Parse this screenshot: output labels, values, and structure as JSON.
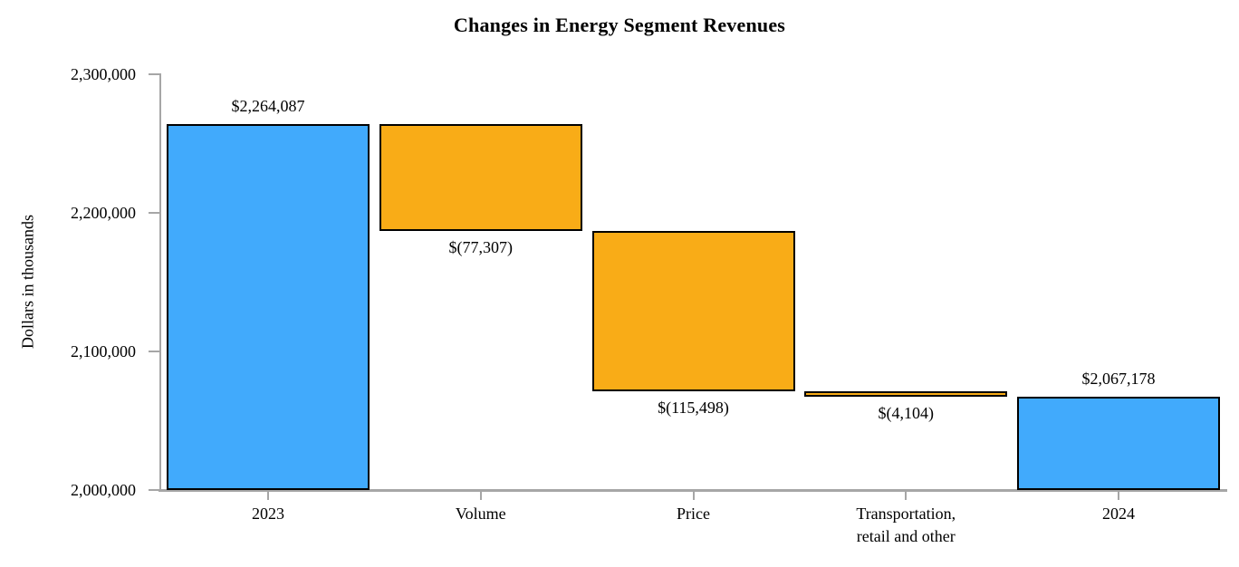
{
  "chart_data": {
    "type": "bar",
    "subtype": "waterfall",
    "title": "Changes in Energy Segment Revenues",
    "xlabel": "",
    "ylabel": "Dollars in thousands",
    "ylim": [
      2000000,
      2300000
    ],
    "grid": false,
    "legend": null,
    "y_ticks": [
      {
        "value": 2300000,
        "label": "2,300,000"
      },
      {
        "value": 2200000,
        "label": "2,200,000"
      },
      {
        "value": 2100000,
        "label": "2,100,000"
      },
      {
        "value": 2000000,
        "label": "2,000,000"
      }
    ],
    "categories": [
      "2023",
      "Volume",
      "Price",
      "Transportation,\nretail and other",
      "2024"
    ],
    "bars": [
      {
        "category": "2023",
        "kind": "total",
        "value": 2264087,
        "value_label": "$2,264,087",
        "label_side": "above"
      },
      {
        "category": "Volume",
        "kind": "delta",
        "value": -77307,
        "value_label": "$(77,307)",
        "label_side": "below"
      },
      {
        "category": "Price",
        "kind": "delta",
        "value": -115498,
        "value_label": "$(115,498)",
        "label_side": "below"
      },
      {
        "category": "Transportation,\nretail and other",
        "kind": "delta",
        "value": -4104,
        "value_label": "$(4,104)",
        "label_side": "below"
      },
      {
        "category": "2024",
        "kind": "total",
        "value": 2067178,
        "value_label": "$2,067,178",
        "label_side": "above"
      }
    ],
    "colors": {
      "total_bar": "#41AAFC",
      "delta_bar": "#F9AC17",
      "bar_border": "#000000",
      "axis": "#A6A6A6",
      "text": "#000000",
      "background": "#FFFFFF"
    }
  }
}
